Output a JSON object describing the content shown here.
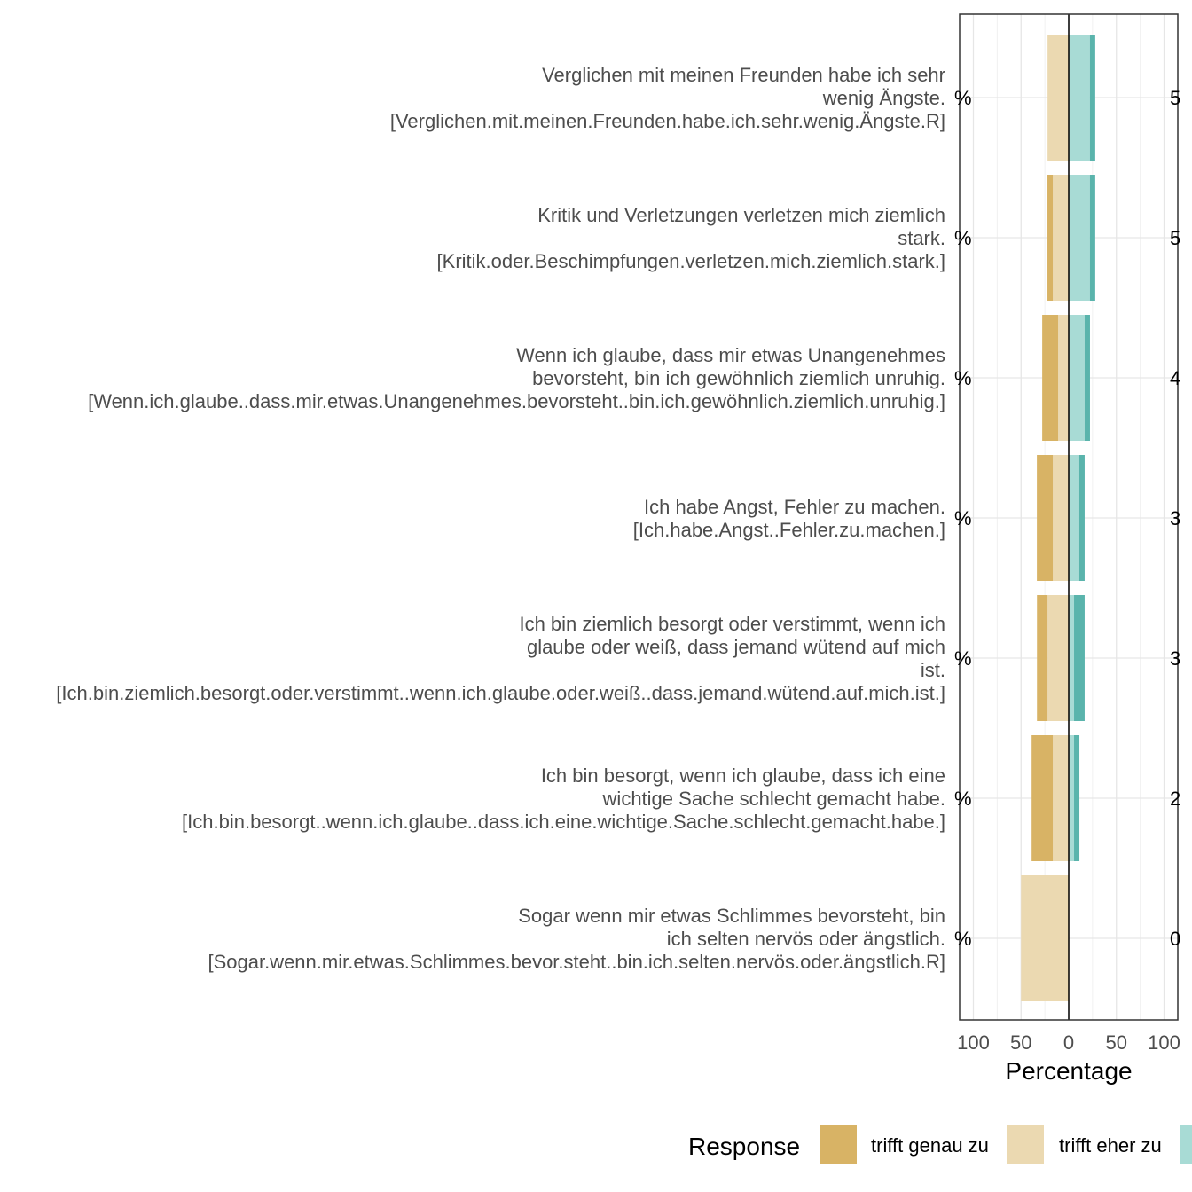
{
  "chart_data": {
    "type": "bar",
    "orientation": "horizontal",
    "stacking": "diverging",
    "xlabel": "Percentage",
    "ylabel": "",
    "xlim": [
      -100,
      100
    ],
    "xticks": [
      -100,
      -50,
      0,
      50,
      100
    ],
    "xtick_labels": [
      "100",
      "50",
      "0",
      "50",
      "100"
    ],
    "grid": true,
    "legend": {
      "title": "Response",
      "position": "bottom",
      "entries": [
        {
          "label": "trifft genau zu",
          "color": "#d8b365"
        },
        {
          "label": "trifft eher zu",
          "color": "#ebd9b1"
        },
        {
          "label": "",
          "color": "#a8dbd5"
        }
      ]
    },
    "categories": [
      [
        "Verglichen mit meinen Freunden habe ich sehr",
        "wenig Ängste.",
        "[Verglichen.mit.meinen.Freunden.habe.ich.sehr.wenig.Ängste.R]"
      ],
      [
        "Kritik und Verletzungen verletzen mich ziemlich",
        "stark.",
        "[Kritik.oder.Beschimpfungen.verletzen.mich.ziemlich.stark.]"
      ],
      [
        "Wenn ich glaube, dass mir etwas Unangenehmes",
        "bevorsteht, bin ich gewöhnlich ziemlich unruhig.",
        "[Wenn.ich.glaube..dass.mir.etwas.Unangenehmes.bevorsteht..bin.ich.gewöhnlich.ziemlich.unruhig.]"
      ],
      [
        "Ich habe Angst, Fehler zu machen.",
        "[Ich.habe.Angst..Fehler.zu.machen.]"
      ],
      [
        "Ich bin ziemlich besorgt oder verstimmt, wenn ich",
        "glaube oder weiß, dass jemand wütend auf mich",
        "ist.",
        "[Ich.bin.ziemlich.besorgt.oder.verstimmt..wenn.ich.glaube.oder.weiß..dass.jemand.wütend.auf.mich.ist.]"
      ],
      [
        "Ich bin besorgt, wenn ich glaube, dass ich eine",
        "wichtige Sache schlecht gemacht habe.",
        "[Ich.bin.besorgt..wenn.ich.glaube..dass.ich.eine.wichtige.Sache.schlecht.gemacht.habe.]"
      ],
      [
        "Sogar wenn mir etwas Schlimmes bevorsteht, bin",
        "ich selten nervös oder ängstlich.",
        "[Sogar.wenn.mir.etwas.Schlimmes.bevor.steht..bin.ich.selten.nervös.oder.ängstlich.R]"
      ]
    ],
    "series": [
      {
        "name": "trifft genau zu",
        "side": "left",
        "color": "#d8b365",
        "values": [
          0,
          5.6,
          16.7,
          16.7,
          11.1,
          22.2,
          0
        ]
      },
      {
        "name": "trifft eher zu",
        "side": "left",
        "color": "#ebd9b1",
        "values": [
          22.2,
          16.7,
          11.1,
          16.7,
          22.2,
          16.7,
          50
        ]
      },
      {
        "name": "",
        "side": "right",
        "color": "#a8dbd5",
        "values": [
          22.2,
          22.2,
          16.7,
          11.1,
          5.6,
          5.6,
          0
        ]
      },
      {
        "name": "",
        "side": "right",
        "color": "#5ab4ac",
        "values": [
          5.6,
          5.6,
          5.6,
          5.6,
          11.1,
          5.6,
          0
        ]
      }
    ],
    "left_labels": [
      "%",
      "%",
      "%",
      "%",
      "%",
      "%",
      "%"
    ],
    "right_labels": [
      "5",
      "5",
      "4",
      "3",
      "3",
      "2",
      "0"
    ]
  }
}
